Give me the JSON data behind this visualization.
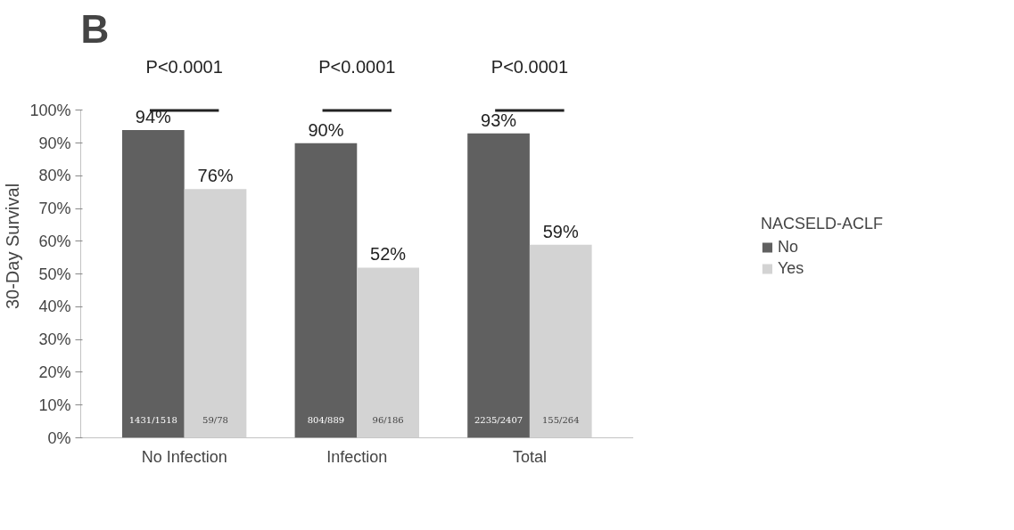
{
  "chart_data": {
    "type": "bar",
    "title": "B",
    "ylabel": "30-Day Survival",
    "legend_title": "NACSELD-ACLF",
    "categories": [
      "No Infection",
      "Infection",
      "Total"
    ],
    "series": [
      {
        "name": "No",
        "color": "#606060",
        "values": [
          94,
          90,
          93
        ],
        "value_labels": [
          "94%",
          "90%",
          "93%"
        ]
      },
      {
        "name": "Yes",
        "color": "#d3d3d3",
        "values": [
          76,
          52,
          59
        ],
        "value_labels": [
          "76%",
          "52%",
          "59%"
        ]
      }
    ],
    "ylim": [
      0,
      100
    ],
    "yticks": [
      {
        "value": 0,
        "label": "0%"
      },
      {
        "value": 10,
        "label": "10%"
      },
      {
        "value": 20,
        "label": "20%"
      },
      {
        "value": 30,
        "label": "30%"
      },
      {
        "value": 40,
        "label": "40%"
      },
      {
        "value": 50,
        "label": "50%"
      },
      {
        "value": 60,
        "label": "60%"
      },
      {
        "value": 70,
        "label": "70%"
      },
      {
        "value": 80,
        "label": "80%"
      },
      {
        "value": 90,
        "label": "90%"
      },
      {
        "value": 100,
        "label": "100%"
      }
    ],
    "annotations": [
      "P<0.0001",
      "P<0.0001",
      "P<0.0001",
      {
        "text": "1431/1518",
        "x": "No Infection",
        "y": 4
      },
      {
        "text": "59/78",
        "x": "No Infection",
        "y": 4
      },
      {
        "text": "804/889",
        "x": "Infection",
        "y": 4
      },
      {
        "text": "96/186",
        "x": "Infection",
        "y": 4
      },
      {
        "text": "2235/2407",
        "x": "Total",
        "y": 4
      },
      {
        "text": "155/264",
        "x": "Total",
        "y": 4
      }
    ],
    "grid": false,
    "legend": "right"
  }
}
